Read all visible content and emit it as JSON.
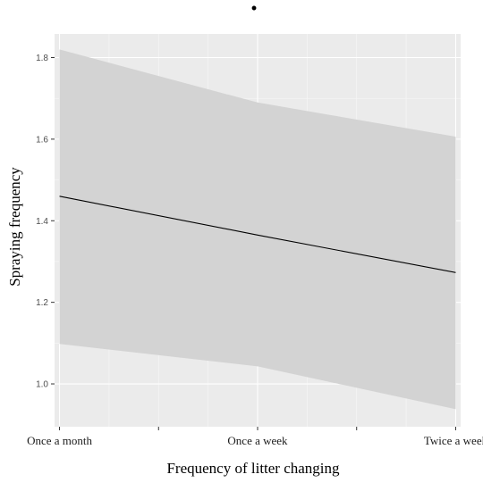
{
  "chart_data": {
    "type": "line",
    "title": "•",
    "xlabel": "Frequency of litter changing",
    "ylabel": "Spraying frequency",
    "categories": [
      "Once a month",
      "Once a week",
      "Twice a week"
    ],
    "x": [
      1,
      2,
      3
    ],
    "series": [
      {
        "values": [
          1.46,
          1.365,
          1.273
        ],
        "ci_lower": [
          1.098,
          1.043,
          0.938
        ],
        "ci_upper": [
          1.82,
          1.69,
          1.606
        ]
      }
    ],
    "xlim": [
      0.975,
      3.025
    ],
    "ylim": [
      0.895,
      1.858
    ],
    "yticks": [
      1.0,
      1.2,
      1.4,
      1.6,
      1.8
    ],
    "ytick_labels": [
      "1.0",
      "1.2",
      "1.4",
      "1.6",
      "1.8"
    ],
    "grid": true,
    "colors": {
      "panel_background": "#ebebeb",
      "grid_major": "#ffffff",
      "ribbon": "#d3d3d3",
      "line": "#000000"
    }
  }
}
